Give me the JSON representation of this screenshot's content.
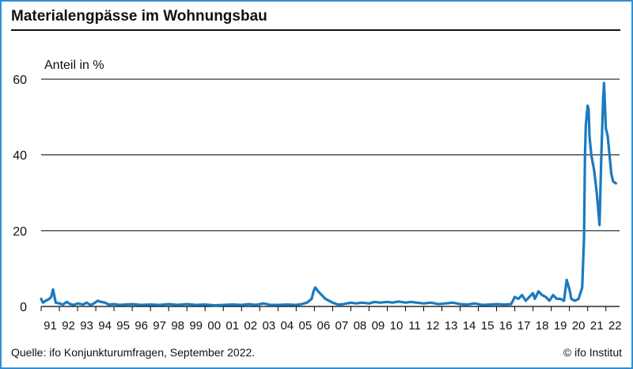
{
  "title": "Materialengpässe im Wohnungsbau",
  "source": "Quelle: ifo Konjunkturumfragen, September 2022.",
  "copyright": "© ifo Institut",
  "colors": {
    "line": "#1a7abf",
    "frame": "#2f8fd6",
    "grid": "#000000"
  },
  "chart_data": {
    "type": "line",
    "title": "Materialengpässe im Wohnungsbau",
    "xlabel": "",
    "ylabel": "Anteil in %",
    "ylim": [
      0,
      60
    ],
    "yticks": [
      0,
      20,
      40,
      60
    ],
    "xlim": [
      1991.0,
      2022.75
    ],
    "grid": "horizontal",
    "x_tick_labels": [
      "91",
      "92",
      "93",
      "94",
      "95",
      "96",
      "97",
      "98",
      "99",
      "00",
      "01",
      "02",
      "03",
      "04",
      "05",
      "06",
      "07",
      "08",
      "09",
      "10",
      "11",
      "12",
      "13",
      "14",
      "15",
      "16",
      "17",
      "18",
      "19",
      "20",
      "21",
      "22"
    ],
    "series": [
      {
        "name": "",
        "x": [
          1991.0,
          1991.1,
          1991.25,
          1991.45,
          1991.55,
          1991.65,
          1991.8,
          1992.0,
          1992.2,
          1992.4,
          1992.6,
          1992.8,
          1993.0,
          1993.3,
          1993.5,
          1993.7,
          1993.9,
          1994.1,
          1994.3,
          1994.5,
          1994.7,
          1995.0,
          1995.3,
          1995.6,
          1996.0,
          1996.5,
          1997.0,
          1997.5,
          1998.0,
          1998.5,
          1999.0,
          1999.5,
          2000.0,
          2000.5,
          2001.0,
          2001.5,
          2002.0,
          2002.4,
          2002.8,
          2003.2,
          2003.6,
          2004.0,
          2004.5,
          2005.0,
          2005.3,
          2005.6,
          2005.85,
          2005.95,
          2006.05,
          2006.2,
          2006.4,
          2006.6,
          2006.8,
          2007.0,
          2007.3,
          2007.6,
          2008.0,
          2008.3,
          2008.6,
          2009.0,
          2009.3,
          2009.6,
          2010.0,
          2010.3,
          2010.6,
          2011.0,
          2011.3,
          2011.6,
          2012.0,
          2012.4,
          2012.8,
          2013.2,
          2013.6,
          2014.0,
          2014.4,
          2014.8,
          2015.2,
          2015.6,
          2016.0,
          2016.4,
          2016.8,
          2017.0,
          2017.2,
          2017.4,
          2017.6,
          2017.8,
          2018.0,
          2018.1,
          2018.3,
          2018.5,
          2018.7,
          2018.9,
          2019.1,
          2019.3,
          2019.5,
          2019.7,
          2019.85,
          2020.0,
          2020.1,
          2020.3,
          2020.5,
          2020.7,
          2020.8,
          2020.85,
          2020.9,
          2021.0,
          2021.05,
          2021.1,
          2021.2,
          2021.35,
          2021.5,
          2021.65,
          2021.75,
          2021.85,
          2021.9,
          2022.0,
          2022.1,
          2022.3,
          2022.4,
          2022.55
        ],
        "values": [
          2.0,
          1.0,
          1.5,
          2.0,
          2.5,
          4.5,
          1.0,
          0.8,
          0.5,
          1.2,
          0.6,
          0.4,
          0.8,
          0.5,
          1.0,
          0.4,
          0.8,
          1.5,
          1.2,
          1.0,
          0.5,
          0.6,
          0.4,
          0.5,
          0.6,
          0.4,
          0.5,
          0.4,
          0.6,
          0.4,
          0.6,
          0.4,
          0.5,
          0.3,
          0.4,
          0.5,
          0.4,
          0.6,
          0.4,
          0.8,
          0.4,
          0.4,
          0.5,
          0.4,
          0.6,
          1.0,
          2.0,
          4.0,
          5.0,
          4.0,
          3.0,
          2.0,
          1.5,
          1.0,
          0.5,
          0.6,
          1.0,
          0.8,
          1.0,
          0.8,
          1.2,
          1.0,
          1.2,
          1.0,
          1.3,
          1.0,
          1.2,
          1.0,
          0.8,
          1.0,
          0.6,
          0.8,
          1.0,
          0.6,
          0.5,
          0.8,
          0.4,
          0.5,
          0.6,
          0.5,
          0.6,
          2.5,
          2.0,
          3.0,
          1.5,
          2.5,
          3.5,
          2.0,
          4.0,
          3.0,
          2.5,
          1.5,
          3.0,
          2.0,
          2.0,
          1.5,
          7.0,
          4.5,
          2.0,
          1.5,
          2.0,
          5.0,
          18.0,
          40.0,
          48.0,
          53.0,
          52.0,
          45.0,
          40.0,
          36.0,
          30.0,
          21.5,
          40.0,
          55.0,
          59.0,
          47.0,
          45.0,
          35.0,
          33.0,
          32.5
        ]
      }
    ]
  }
}
